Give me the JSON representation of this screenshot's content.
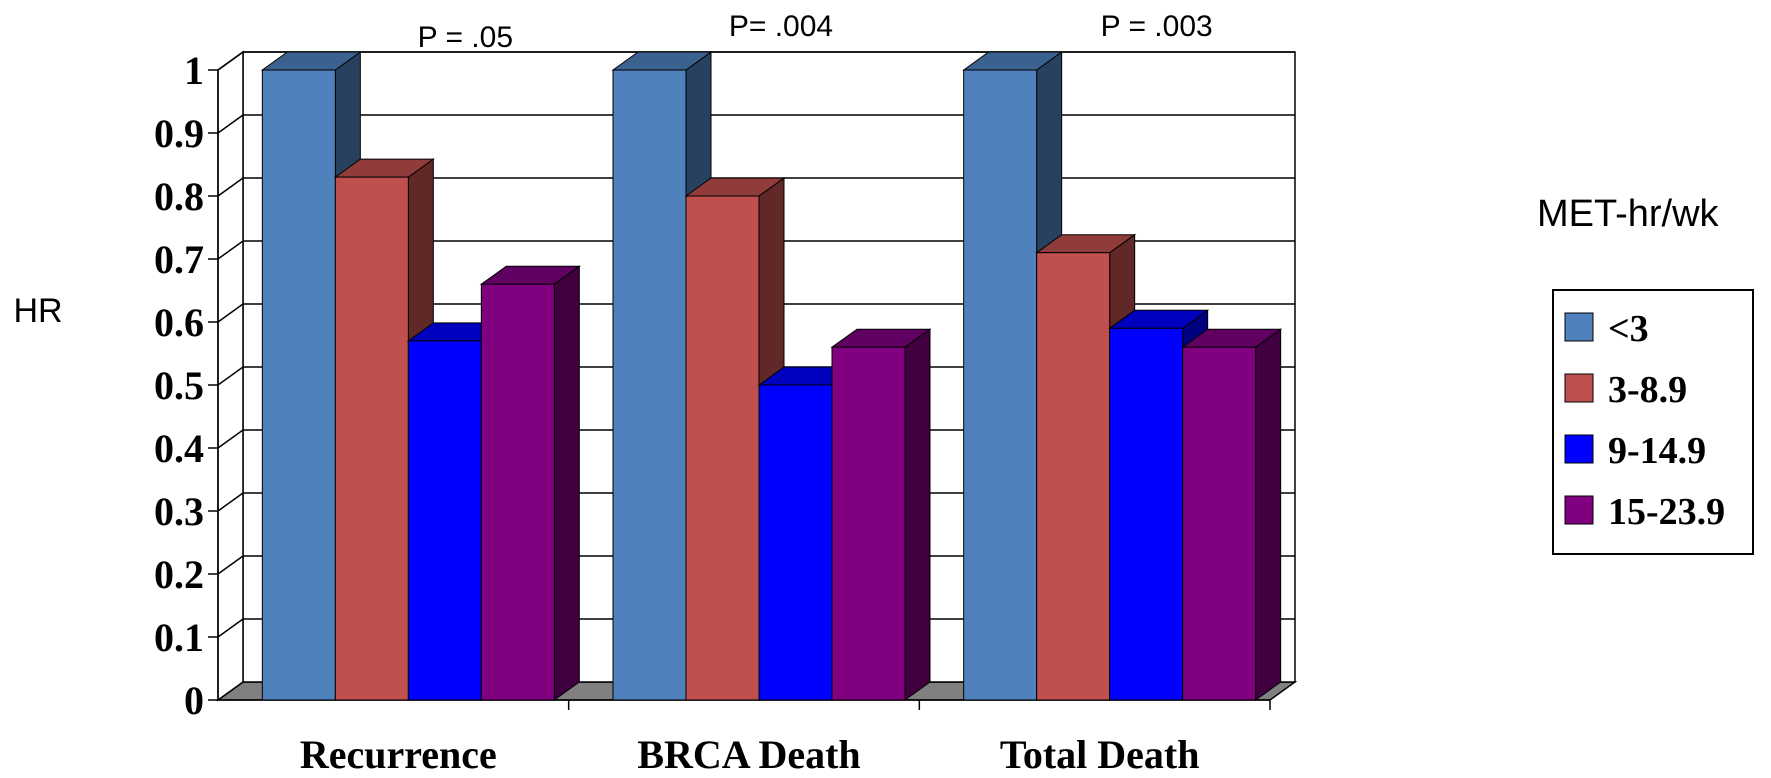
{
  "chart_data": {
    "type": "bar",
    "ylabel": "HR",
    "ylim": [
      0,
      1
    ],
    "yticks": [
      "0",
      "0.1",
      "0.2",
      "0.3",
      "0.4",
      "0.5",
      "0.6",
      "0.7",
      "0.8",
      "0.9",
      "1"
    ],
    "categories": [
      "Recurrence",
      "BRCA Death",
      "Total Death"
    ],
    "annotations": [
      "P = .05",
      "P= .004",
      "P = .003"
    ],
    "legend_title": "MET-hr/wk",
    "legend_position": "right",
    "grid": true,
    "series": [
      {
        "name": "<3",
        "color": "#4F81BD",
        "values": [
          1.0,
          1.0,
          1.0
        ]
      },
      {
        "name": "3-8.9",
        "color": "#C0504D",
        "values": [
          0.83,
          0.8,
          0.71
        ]
      },
      {
        "name": "9-14.9",
        "color": "#0000FF",
        "values": [
          0.57,
          0.5,
          0.59
        ]
      },
      {
        "name": "15-23.9",
        "color": "#800080",
        "values": [
          0.66,
          0.56,
          0.56
        ]
      }
    ]
  }
}
